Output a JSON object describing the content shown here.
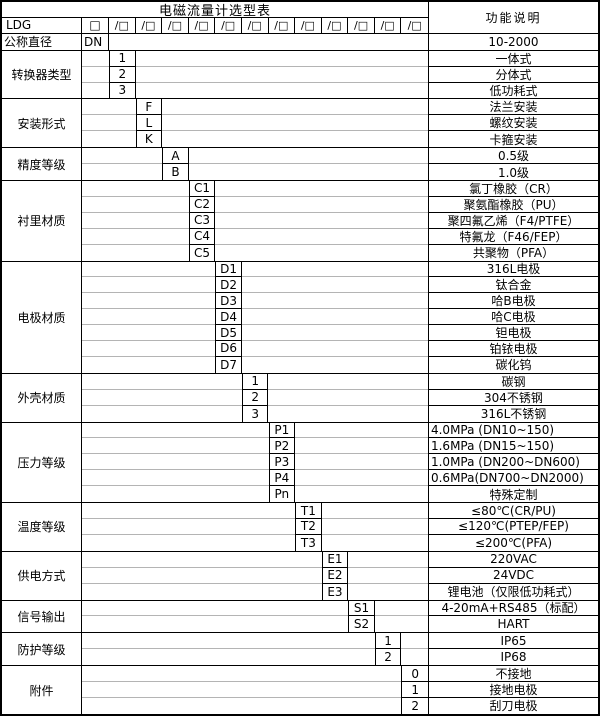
{
  "title": "电磁流量计选型表",
  "right_header": "功能说明",
  "model_row": {
    "prefix_label": "LDG",
    "first_box": "□",
    "slot_box": "/□",
    "slot_count": 12
  },
  "dn_row": {
    "label": "公称直径",
    "code": "DN",
    "desc": "10-2000"
  },
  "colors": {
    "border": "#000000",
    "inner_line": "#b4b4b4",
    "background": "#ffffff",
    "text": "#000000"
  },
  "categories": [
    {
      "label": "转换器类型",
      "slot": 1,
      "options": [
        {
          "code": "1",
          "desc": "一体式"
        },
        {
          "code": "2",
          "desc": "分体式"
        },
        {
          "code": "3",
          "desc": "低功耗式"
        }
      ]
    },
    {
      "label": "安装形式",
      "slot": 2,
      "options": [
        {
          "code": "F",
          "desc": "法兰安装"
        },
        {
          "code": "L",
          "desc": "螺纹安装"
        },
        {
          "code": "K",
          "desc": "卡箍安装"
        }
      ]
    },
    {
      "label": "精度等级",
      "slot": 3,
      "options": [
        {
          "code": "A",
          "desc": "0.5级"
        },
        {
          "code": "B",
          "desc": "1.0级"
        }
      ]
    },
    {
      "label": "衬里材质",
      "slot": 4,
      "options": [
        {
          "code": "C1",
          "desc": "氯丁橡胶（CR）"
        },
        {
          "code": "C2",
          "desc": "聚氨酯橡胶（PU）"
        },
        {
          "code": "C3",
          "desc": "聚四氟乙烯（F4/PTFE）"
        },
        {
          "code": "C4",
          "desc": "特氟龙（F46/FEP）"
        },
        {
          "code": "C5",
          "desc": "共聚物（PFA）"
        }
      ]
    },
    {
      "label": "电极材质",
      "slot": 5,
      "options": [
        {
          "code": "D1",
          "desc": "316L电极"
        },
        {
          "code": "D2",
          "desc": "钛合金"
        },
        {
          "code": "D3",
          "desc": "哈B电极"
        },
        {
          "code": "D4",
          "desc": "哈C电极"
        },
        {
          "code": "D5",
          "desc": "钽电极"
        },
        {
          "code": "D6",
          "desc": "铂铱电极"
        },
        {
          "code": "D7",
          "desc": "碳化钨"
        }
      ]
    },
    {
      "label": "外壳材质",
      "slot": 6,
      "options": [
        {
          "code": "1",
          "desc": "碳钢"
        },
        {
          "code": "2",
          "desc": "304不锈钢"
        },
        {
          "code": "3",
          "desc": "316L不锈钢"
        }
      ]
    },
    {
      "label": "压力等级",
      "slot": 7,
      "options": [
        {
          "code": "P1",
          "desc": "4.0MPa (DN10~150)",
          "align": "left"
        },
        {
          "code": "P2",
          "desc": "1.6MPa (DN15~150)",
          "align": "left"
        },
        {
          "code": "P3",
          "desc": "1.0MPa (DN200~DN600)",
          "align": "left"
        },
        {
          "code": "P4",
          "desc": "0.6MPa(DN700~DN2000)",
          "align": "left"
        },
        {
          "code": "Pn",
          "desc": "特殊定制"
        }
      ]
    },
    {
      "label": "温度等级",
      "slot": 8,
      "options": [
        {
          "code": "T1",
          "desc": "≤80℃(CR/PU)"
        },
        {
          "code": "T2",
          "desc": "≤120℃(PTEP/FEP)"
        },
        {
          "code": "T3",
          "desc": "≤200℃(PFA)"
        }
      ]
    },
    {
      "label": "供电方式",
      "slot": 9,
      "options": [
        {
          "code": "E1",
          "desc": "220VAC"
        },
        {
          "code": "E2",
          "desc": "24VDC"
        },
        {
          "code": "E3",
          "desc": "锂电池（仅限低功耗式）"
        }
      ]
    },
    {
      "label": "信号输出",
      "slot": 10,
      "options": [
        {
          "code": "S1",
          "desc": "4-20mA+RS485（标配）"
        },
        {
          "code": "S2",
          "desc": "HART"
        }
      ]
    },
    {
      "label": "防护等级",
      "slot": 11,
      "options": [
        {
          "code": "1",
          "desc": "IP65"
        },
        {
          "code": "2",
          "desc": "IP68"
        }
      ]
    },
    {
      "label": "附件",
      "slot": 12,
      "options": [
        {
          "code": "0",
          "desc": "不接地"
        },
        {
          "code": "1",
          "desc": "接地电极"
        },
        {
          "code": "2",
          "desc": "刮刀电极"
        }
      ]
    }
  ]
}
